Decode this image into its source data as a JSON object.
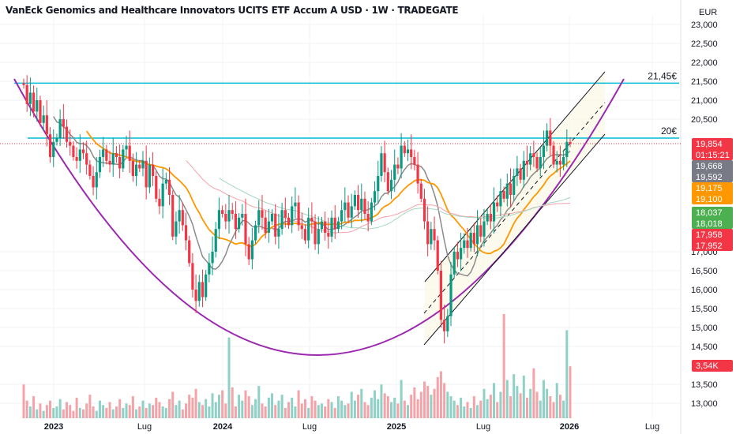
{
  "header": {
    "title": "VanEck Genomics and Healthcare Innovators UCITS ETF Accum A USD · 1W · TRADEGATE"
  },
  "price_axis": {
    "currency": "EUR",
    "ticks": [
      "23,000",
      "22,500",
      "22,000",
      "21,500",
      "21,000",
      "20,500",
      "17,000",
      "16,500",
      "16,000",
      "15,500",
      "15,000",
      "14,500",
      "13,500",
      "13,000"
    ],
    "tick_values": [
      23000,
      22500,
      22000,
      21500,
      21000,
      20500,
      17000,
      16500,
      16000,
      15500,
      15000,
      14500,
      13500,
      13000
    ]
  },
  "time_axis": {
    "ticks": [
      "2023",
      "Lug",
      "2024",
      "Lug",
      "2025",
      "Lug",
      "2026",
      "Lug"
    ]
  },
  "tags": {
    "last_price": "19,854",
    "countdown": "01:15:21",
    "gray_a": "19,668",
    "gray_b": "19,592",
    "orange_a": "19,175",
    "orange_b": "19,100",
    "green_a": "18,037",
    "green_b": "18,018",
    "red_a": "17,958",
    "red_b": "17,952",
    "volume": "3,54K"
  },
  "annotations": {
    "resistance_high": "21,45€",
    "resistance_mid": "20€"
  },
  "colors": {
    "up": "#089981",
    "down": "#f23645",
    "level": "#00bcd4",
    "cup": "#9c27b0",
    "ma_fast": "#8a8a8a",
    "ma_mid": "#ff9800",
    "ma_slow_a": "#f7a1a8",
    "ma_slow_b": "#a5d6c0"
  },
  "chart_data": {
    "type": "candlestick",
    "interval": "1W",
    "ylim": [
      12800,
      23200
    ],
    "levels": [
      21450,
      20000
    ],
    "closes": [
      21400,
      20900,
      21200,
      20700,
      21000,
      20400,
      20600,
      20100,
      19500,
      19900,
      20000,
      20500,
      20300,
      19900,
      19800,
      19500,
      19400,
      19700,
      19600,
      19300,
      19000,
      18700,
      19100,
      19500,
      19700,
      19400,
      19300,
      19600,
      19500,
      19200,
      19700,
      19800,
      19400,
      19000,
      19300,
      19200,
      19400,
      18700,
      19300,
      19000,
      18400,
      18200,
      18800,
      18900,
      18500,
      17400,
      17800,
      18100,
      17700,
      17300,
      16700,
      16000,
      15700,
      16200,
      15800,
      16400,
      16700,
      17000,
      17600,
      18100,
      18000,
      17800,
      18100,
      18000,
      17600,
      17900,
      18000,
      17200,
      16800,
      17300,
      17700,
      18100,
      17900,
      17500,
      17800,
      18000,
      17400,
      17600,
      18100,
      17900,
      17700,
      18200,
      18300,
      17700,
      17600,
      17300,
      17900,
      17800,
      17200,
      17600,
      17800,
      17500,
      17400,
      17900,
      17600,
      17800,
      18100,
      18300,
      17900,
      18200,
      18500,
      18100,
      18400,
      18000,
      17800,
      18300,
      18600,
      19000,
      19600,
      19100,
      18600,
      18900,
      19300,
      19200,
      19800,
      19600,
      19700,
      19500,
      19300,
      18800,
      18400,
      17800,
      17200,
      17600,
      17300,
      16500,
      15200,
      14900,
      15300,
      16400,
      17000,
      16800,
      17100,
      17300,
      17100,
      17500,
      17200,
      17700,
      17400,
      17800,
      18000,
      17800,
      18300,
      18200,
      18600,
      18400,
      18800,
      18500,
      19000,
      19200,
      18900,
      19400,
      19300,
      19600,
      19500,
      19200,
      19500,
      19800,
      20200,
      19800,
      19300,
      19400,
      19300,
      19500,
      19900,
      19854
    ],
    "volumes_k": [
      2.3,
      1.2,
      0.8,
      1.5,
      0.6,
      1.0,
      0.5,
      0.9,
      1.2,
      0.7,
      0.8,
      1.3,
      0.6,
      1.1,
      0.9,
      0.5,
      1.4,
      0.7,
      0.6,
      1.0,
      1.6,
      0.8,
      0.5,
      1.2,
      0.9,
      0.7,
      1.1,
      0.6,
      0.8,
      1.3,
      0.7,
      1.0,
      0.9,
      1.5,
      0.6,
      0.8,
      1.2,
      0.7,
      1.0,
      0.9,
      1.4,
      1.1,
      0.8,
      0.7,
      1.3,
      1.8,
      0.9,
      1.2,
      0.6,
      1.0,
      1.6,
      1.4,
      2.0,
      1.1,
      0.9,
      1.3,
      0.8,
      1.7,
      1.1,
      1.6,
      1.9,
      1.0,
      5.5,
      2.1,
      0.8,
      1.6,
      1.2,
      1.9,
      1.5,
      0.9,
      1.3,
      2.2,
      1.0,
      0.8,
      1.4,
      1.7,
      0.9,
      1.2,
      1.6,
      0.7,
      1.1,
      1.4,
      0.8,
      1.9,
      1.0,
      1.3,
      0.7,
      1.5,
      1.2,
      0.9,
      1.0,
      0.8,
      1.3,
      1.1,
      0.7,
      1.5,
      1.2,
      0.9,
      1.0,
      1.8,
      1.2,
      1.6,
      2.0,
      1.1,
      0.9,
      1.4,
      1.9,
      1.3,
      2.3,
      1.7,
      1.5,
      1.1,
      1.4,
      1.0,
      2.6,
      1.2,
      0.9,
      1.6,
      2.1,
      1.3,
      1.8,
      2.5,
      2.2,
      1.6,
      2.0,
      2.8,
      3.2,
      2.4,
      1.8,
      1.5,
      1.2,
      0.9,
      1.4,
      0.8,
      1.1,
      0.7,
      1.5,
      0.9,
      1.2,
      2.0,
      1.3,
      1.6,
      2.4,
      1.1,
      1.8,
      7.1,
      2.6,
      1.5,
      3.0,
      2.2,
      1.7,
      2.9,
      1.4,
      2.0,
      3.4,
      1.8,
      1.2,
      2.6,
      2.0,
      1.5,
      1.1,
      2.4,
      1.6,
      1.2,
      6.0,
      3.54
    ]
  }
}
